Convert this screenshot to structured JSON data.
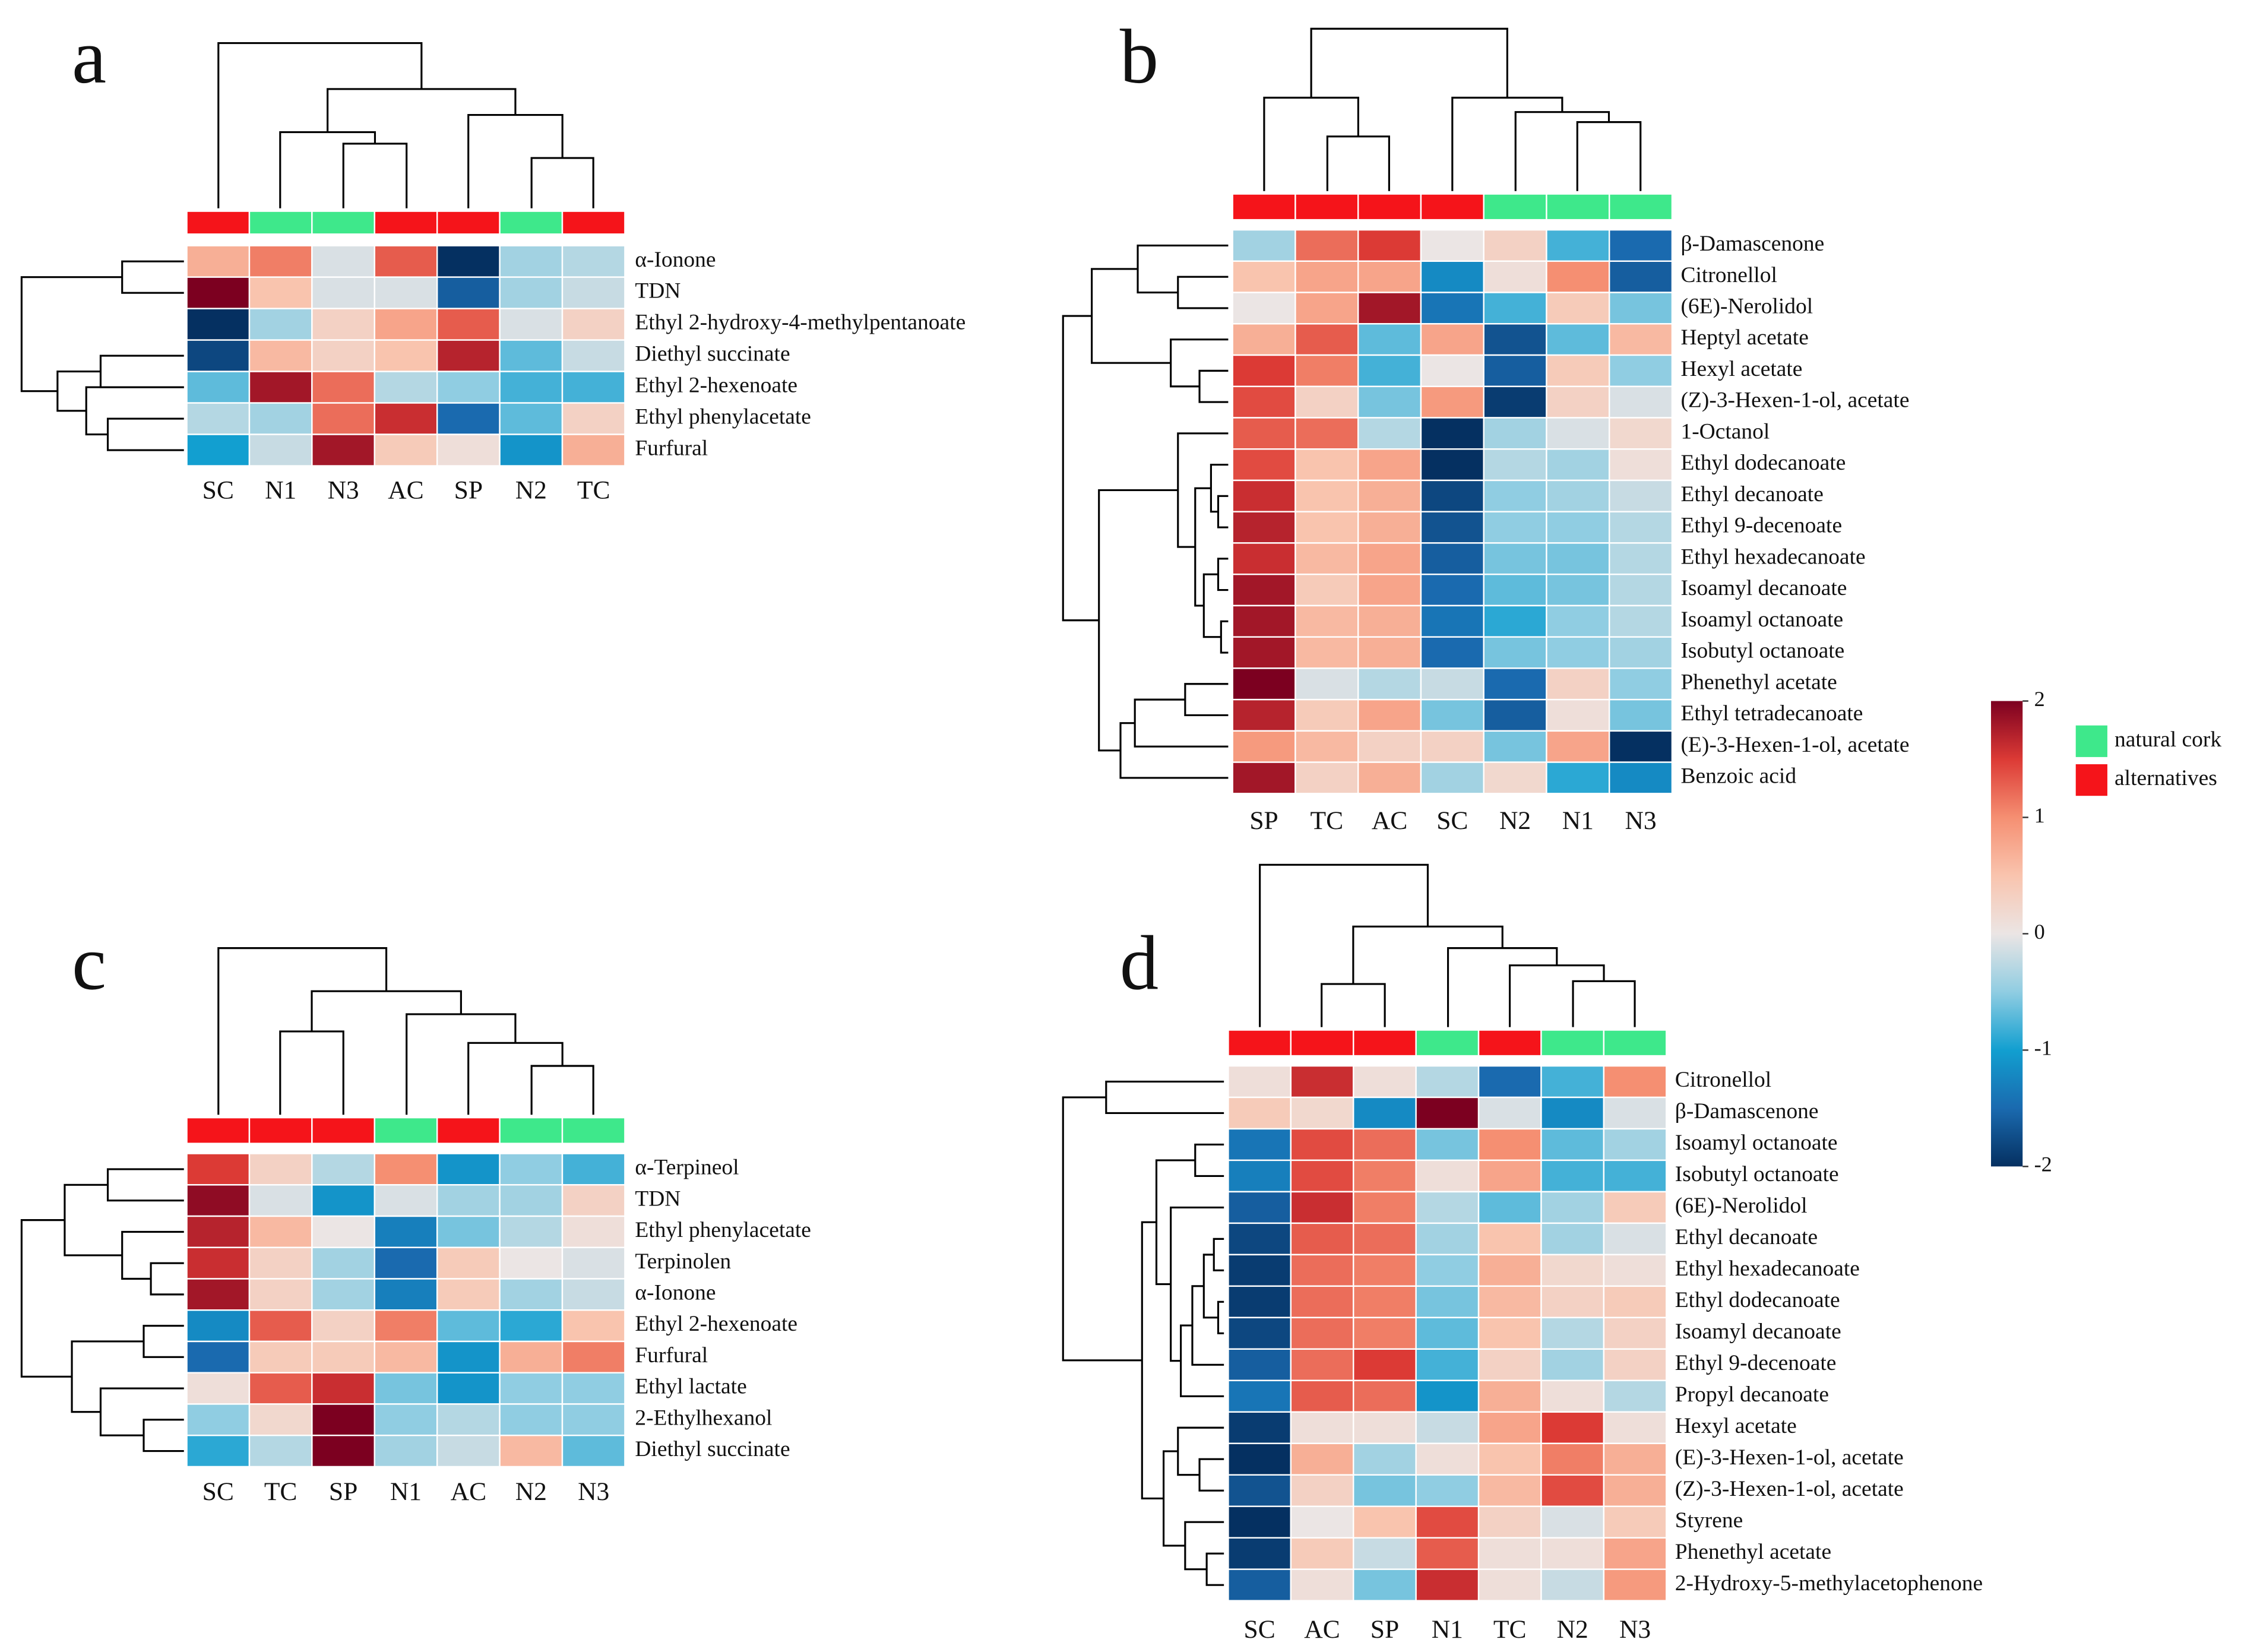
{
  "chart_data": [
    {
      "type": "heatmap",
      "label": "a",
      "categories": [
        "SC",
        "N1",
        "N3",
        "AC",
        "SP",
        "N2",
        "TC"
      ],
      "column_groups": [
        "alternatives",
        "natural cork",
        "natural cork",
        "alternatives",
        "alternatives",
        "natural cork",
        "alternatives"
      ],
      "rows": [
        "α-Ionone",
        "TDN",
        "Ethyl 2-hydroxy-4-methylpentanoate",
        "Diethyl succinate",
        "Ethyl 2-hexenoate",
        "Ethyl phenylacetate",
        "Furfural"
      ],
      "values": [
        [
          0.7,
          1.1,
          -0.1,
          1.3,
          -2,
          -0.4,
          -0.3
        ],
        [
          2,
          0.5,
          -0.1,
          -0.1,
          -1.6,
          -0.4,
          -0.2
        ],
        [
          -2,
          -0.4,
          0.3,
          0.8,
          1.3,
          -0.1,
          0.3
        ],
        [
          -1.8,
          0.6,
          0.3,
          0.5,
          1.7,
          -0.7,
          -0.2
        ],
        [
          -0.7,
          1.8,
          1.2,
          -0.3,
          -0.5,
          -0.8,
          -0.8
        ],
        [
          -0.3,
          -0.4,
          1.2,
          1.6,
          -1.5,
          -0.7,
          0.3
        ],
        [
          -1,
          -0.2,
          1.8,
          0.4,
          0.1,
          -1.1,
          0.7
        ]
      ]
    },
    {
      "type": "heatmap",
      "label": "b",
      "categories": [
        "SP",
        "TC",
        "AC",
        "SC",
        "N2",
        "N1",
        "N3"
      ],
      "column_groups": [
        "alternatives",
        "alternatives",
        "alternatives",
        "alternatives",
        "natural cork",
        "natural cork",
        "natural cork"
      ],
      "rows": [
        "β-Damascenone",
        "Citronellol",
        "(6E)-Nerolidol",
        "Heptyl acetate",
        "Hexyl acetate",
        "(Z)-3-Hexen-1-ol, acetate",
        "1-Octanol",
        "Ethyl dodecanoate",
        "Ethyl decanoate",
        "Ethyl 9-decenoate",
        "Ethyl hexadecanoate",
        "Isoamyl decanoate",
        "Isoamyl octanoate",
        "Isobutyl octanoate",
        "Phenethyl acetate",
        "Ethyl tetradecanoate",
        "(E)-3-Hexen-1-ol, acetate",
        "Benzoic acid"
      ],
      "values": [
        [
          -0.4,
          1.2,
          1.5,
          0,
          0.3,
          -0.8,
          -1.5
        ],
        [
          0.5,
          0.8,
          0.8,
          -1.2,
          0.1,
          1,
          -1.6
        ],
        [
          0,
          0.8,
          1.8,
          -1.4,
          -0.8,
          0.4,
          -0.6
        ],
        [
          0.7,
          1.3,
          -0.7,
          0.8,
          -1.7,
          -0.7,
          0.6
        ],
        [
          1.5,
          1.1,
          -0.8,
          0,
          -1.6,
          0.4,
          -0.5
        ],
        [
          1.4,
          0.3,
          -0.6,
          0.9,
          -1.9,
          0.3,
          -0.1
        ],
        [
          1.3,
          1.2,
          -0.3,
          -2,
          -0.4,
          -0.1,
          0.2
        ],
        [
          1.4,
          0.5,
          0.8,
          -2,
          -0.3,
          -0.4,
          0.1
        ],
        [
          1.6,
          0.5,
          0.7,
          -1.8,
          -0.5,
          -0.4,
          -0.2
        ],
        [
          1.7,
          0.5,
          0.7,
          -1.7,
          -0.5,
          -0.5,
          -0.3
        ],
        [
          1.6,
          0.6,
          0.8,
          -1.6,
          -0.6,
          -0.6,
          -0.3
        ],
        [
          1.8,
          0.4,
          0.8,
          -1.5,
          -0.7,
          -0.6,
          -0.3
        ],
        [
          1.8,
          0.6,
          0.7,
          -1.4,
          -0.9,
          -0.5,
          -0.3
        ],
        [
          1.8,
          0.6,
          0.7,
          -1.5,
          -0.6,
          -0.5,
          -0.4
        ],
        [
          2,
          -0.1,
          -0.3,
          -0.2,
          -1.5,
          0.3,
          -0.5
        ],
        [
          1.7,
          0.4,
          0.8,
          -0.6,
          -1.6,
          0.1,
          -0.6
        ],
        [
          0.9,
          0.6,
          0.3,
          0.3,
          -0.6,
          0.8,
          -2
        ],
        [
          1.8,
          0.3,
          0.7,
          -0.4,
          0.2,
          -0.9,
          -1.2
        ]
      ]
    },
    {
      "type": "heatmap",
      "label": "c",
      "categories": [
        "SC",
        "TC",
        "SP",
        "N1",
        "AC",
        "N2",
        "N3"
      ],
      "column_groups": [
        "alternatives",
        "alternatives",
        "alternatives",
        "natural cork",
        "alternatives",
        "natural cork",
        "natural cork"
      ],
      "rows": [
        "α-Terpineol",
        "TDN",
        "Ethyl phenylacetate",
        "Terpinolen",
        "α-Ionone",
        "Ethyl 2-hexenoate",
        "Furfural",
        "Ethyl lactate",
        "2-Ethylhexanol",
        "Diethyl succinate"
      ],
      "values": [
        [
          1.5,
          0.3,
          -0.3,
          1,
          -1.1,
          -0.5,
          -0.8
        ],
        [
          1.9,
          -0.1,
          -1.1,
          -0.1,
          -0.4,
          -0.4,
          0.3
        ],
        [
          1.7,
          0.6,
          0,
          -1.3,
          -0.6,
          -0.3,
          0.1
        ],
        [
          1.6,
          0.3,
          -0.4,
          -1.5,
          0.4,
          0,
          -0.1
        ],
        [
          1.8,
          0.3,
          -0.4,
          -1.3,
          0.4,
          -0.4,
          -0.2
        ],
        [
          -1.2,
          1.3,
          0.3,
          1.1,
          -0.7,
          -0.9,
          0.5
        ],
        [
          -1.5,
          0.4,
          0.4,
          0.6,
          -1.1,
          0.7,
          1.1
        ],
        [
          0.1,
          1.3,
          1.6,
          -0.6,
          -1.1,
          -0.5,
          -0.5
        ],
        [
          -0.5,
          0.2,
          2,
          -0.5,
          -0.3,
          -0.5,
          -0.5
        ],
        [
          -0.9,
          -0.3,
          2,
          -0.4,
          -0.2,
          0.6,
          -0.7
        ]
      ]
    },
    {
      "type": "heatmap",
      "label": "d",
      "categories": [
        "SC",
        "AC",
        "SP",
        "N1",
        "TC",
        "N2",
        "N3"
      ],
      "column_groups": [
        "alternatives",
        "alternatives",
        "alternatives",
        "natural cork",
        "alternatives",
        "natural cork",
        "natural cork"
      ],
      "rows": [
        "Citronellol",
        "β-Damascenone",
        "Isoamyl octanoate",
        "Isobutyl octanoate",
        "(6E)-Nerolidol",
        "Ethyl decanoate",
        "Ethyl hexadecanoate",
        "Ethyl dodecanoate",
        "Isoamyl decanoate",
        "Ethyl 9-decenoate",
        "Propyl decanoate",
        "Hexyl acetate",
        "(E)-3-Hexen-1-ol, acetate",
        "(Z)-3-Hexen-1-ol, acetate",
        "Styrene",
        "Phenethyl acetate",
        "2-Hydroxy-5-methylacetophenone"
      ],
      "values": [
        [
          0.1,
          1.6,
          0.1,
          -0.3,
          -1.5,
          -0.8,
          1
        ],
        [
          0.4,
          0.2,
          -1.2,
          2,
          -0.1,
          -1.2,
          -0.1
        ],
        [
          -1.4,
          1.4,
          1.2,
          -0.6,
          1,
          -0.7,
          -0.4
        ],
        [
          -1.3,
          1.4,
          1.1,
          0.1,
          0.8,
          -0.8,
          -0.8
        ],
        [
          -1.6,
          1.6,
          1.1,
          -0.3,
          -0.7,
          -0.4,
          0.4
        ],
        [
          -1.8,
          1.3,
          1.2,
          -0.4,
          0.5,
          -0.4,
          -0.1
        ],
        [
          -1.9,
          1.2,
          1.1,
          -0.5,
          0.7,
          0.2,
          0.1
        ],
        [
          -1.9,
          1.2,
          1.1,
          -0.6,
          0.6,
          0.3,
          0.4
        ],
        [
          -1.8,
          1.2,
          1.1,
          -0.7,
          0.5,
          -0.3,
          0.3
        ],
        [
          -1.6,
          1.2,
          1.5,
          -0.8,
          0.3,
          -0.4,
          0.3
        ],
        [
          -1.4,
          1.3,
          1.2,
          -1.1,
          0.7,
          0.1,
          -0.3
        ],
        [
          -1.9,
          0.1,
          0.1,
          -0.2,
          0.8,
          1.5,
          0.1
        ],
        [
          -2,
          0.7,
          -0.4,
          0.1,
          0.5,
          1.1,
          0.7
        ],
        [
          -1.7,
          0.3,
          -0.6,
          -0.5,
          0.6,
          1.4,
          0.7
        ],
        [
          -2,
          0,
          0.5,
          1.4,
          0.3,
          -0.1,
          0.4
        ],
        [
          -1.9,
          0.4,
          -0.2,
          1.3,
          0.1,
          0.1,
          0.8
        ],
        [
          -1.6,
          0.1,
          -0.6,
          1.6,
          0.1,
          -0.2,
          0.9
        ]
      ]
    }
  ],
  "colorbar": {
    "clim": [
      -2,
      2
    ],
    "ticks": [
      2,
      1,
      0,
      -1,
      -2
    ],
    "colorscale": [
      {
        "value": -2,
        "color": "#053061"
      },
      {
        "value": -1.5,
        "color": "#1a6aaf"
      },
      {
        "value": -1,
        "color": "#129fd0"
      },
      {
        "value": -0.5,
        "color": "#90cde2"
      },
      {
        "value": 0,
        "color": "#ebe5e4"
      },
      {
        "value": 0.5,
        "color": "#f9c4ae"
      },
      {
        "value": 1,
        "color": "#f58f72"
      },
      {
        "value": 1.5,
        "color": "#dc3a35"
      },
      {
        "value": 2,
        "color": "#7c0020"
      }
    ]
  },
  "group_legend": [
    {
      "name": "natural cork",
      "color": "#3ee88b"
    },
    {
      "name": "alternatives",
      "color": "#f5141a"
    }
  ]
}
